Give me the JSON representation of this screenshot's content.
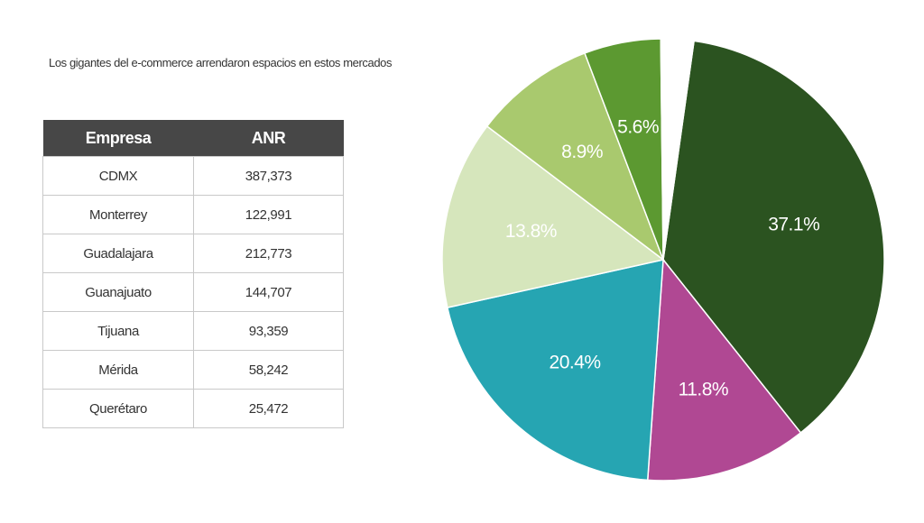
{
  "subtitle": "Los gigantes del e-commerce arrendaron espacios en estos mercados",
  "table": {
    "headers": [
      "Empresa",
      "ANR"
    ],
    "rows": [
      [
        "CDMX",
        "387,373"
      ],
      [
        "Monterrey",
        "122,991"
      ],
      [
        "Guadalajara",
        "212,773"
      ],
      [
        "Guanajuato",
        "144,707"
      ],
      [
        "Tijuana",
        "93,359"
      ],
      [
        "Mérida",
        "58,242"
      ],
      [
        "Querétaro",
        "25,472"
      ]
    ]
  },
  "chart_data": {
    "type": "pie",
    "categories": [
      "CDMX",
      "Monterrey",
      "Guadalajara",
      "Guanajuato",
      "Tijuana",
      "Mérida",
      "Querétaro"
    ],
    "values": [
      37.1,
      11.8,
      20.4,
      13.8,
      8.9,
      5.6,
      2.4
    ],
    "labels": [
      "37.1%",
      "11.8%",
      "20.4%",
      "13.8%",
      "8.9%",
      "5.6%",
      ""
    ],
    "colors": [
      "#2b5320",
      "#b04893",
      "#26a5b2",
      "#d6e6bc",
      "#a9c96e",
      "#5c9931",
      "#ffffff"
    ],
    "start": "top, clockwise"
  }
}
